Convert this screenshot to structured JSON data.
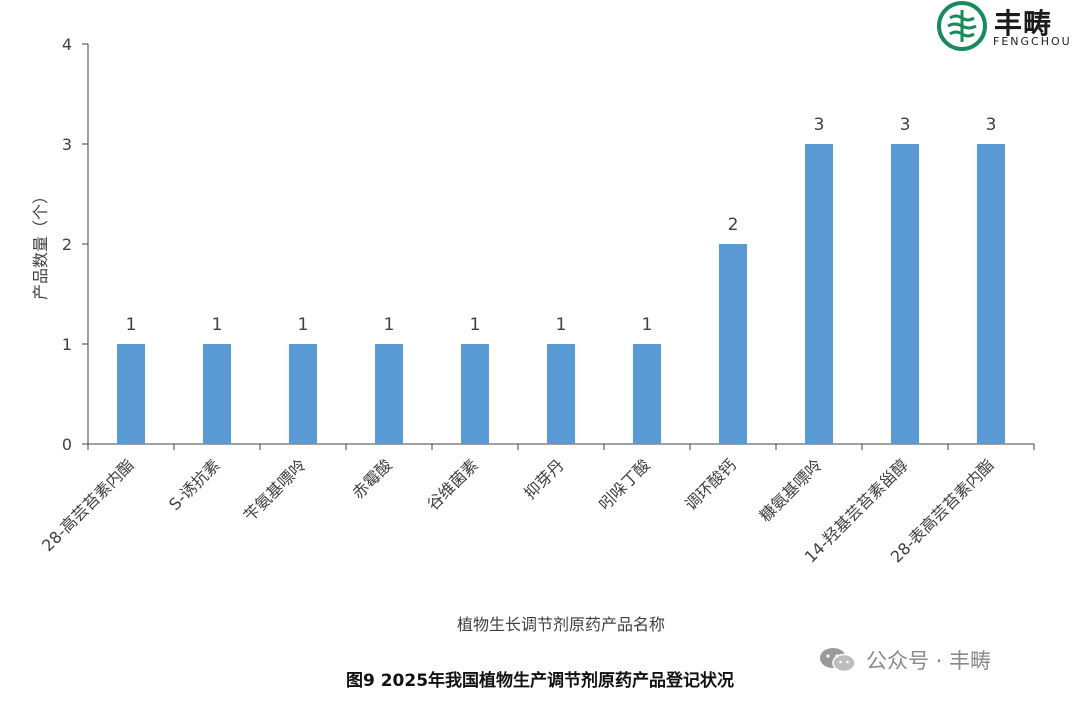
{
  "chart_data": {
    "type": "bar",
    "categories": [
      "28-高芸苔素内酯",
      "S-诱抗素",
      "苄氨基嘌呤",
      "赤霉酸",
      "谷维菌素",
      "抑芽丹",
      "吲哚丁酸",
      "调环酸钙",
      "糠氨基嘌呤",
      "14-羟基芸苔素甾醇",
      "28-表高芸苔素内酯"
    ],
    "values": [
      1,
      1,
      1,
      1,
      1,
      1,
      1,
      2,
      3,
      3,
      3
    ],
    "data_labels": [
      "1",
      "1",
      "1",
      "1",
      "1",
      "1",
      "1",
      "2",
      "3",
      "3",
      "3"
    ],
    "xlabel": "植物生长调节剂原药产品名称",
    "ylabel": "产品数量（个）",
    "ylim": [
      0,
      4
    ],
    "yticks": [
      "0",
      "1",
      "2",
      "3",
      "4"
    ],
    "bar_color": "#5b9bd5",
    "grid": false,
    "legend": "none"
  },
  "caption": "图9 2025年我国植物生产调节剂原药产品登记状况",
  "logo": {
    "text": "丰畴",
    "subtext": "FENGCHOU",
    "color": "#1a8a5a"
  },
  "watermark": {
    "text": "公众号 · 丰畴",
    "icon": "wechat-icon"
  }
}
